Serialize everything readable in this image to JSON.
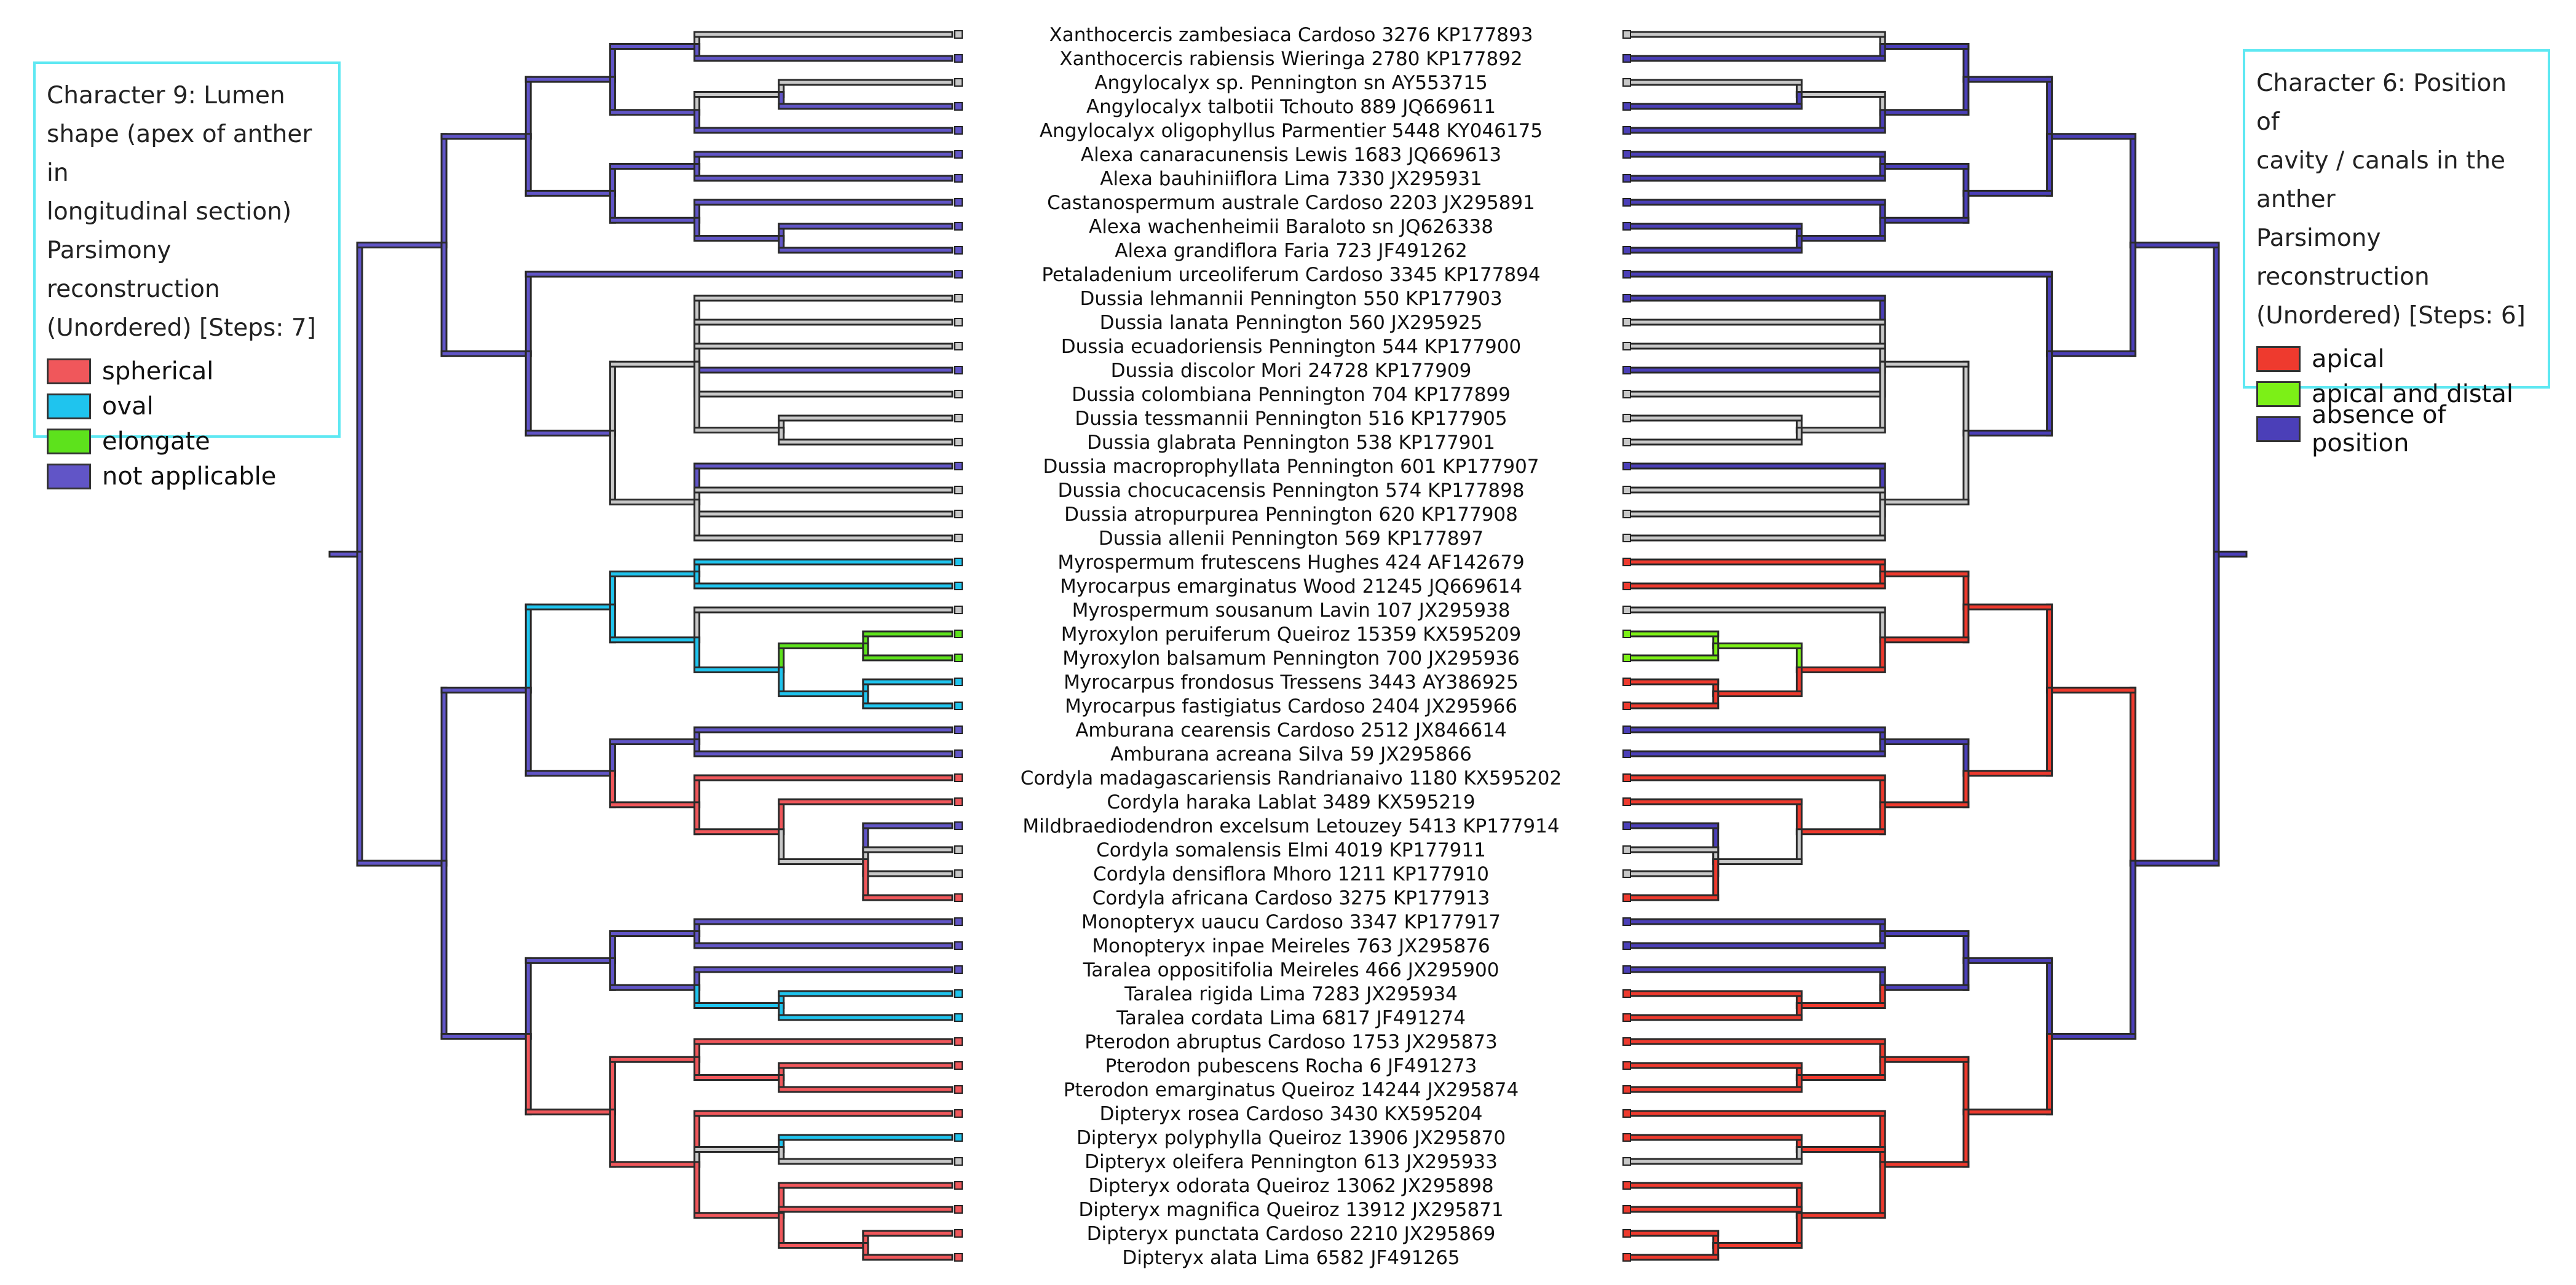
{
  "legend_left": {
    "title_lines": [
      "Character 9: Lumen",
      "shape (apex of anther in",
      "longitudinal section)",
      "Parsimony reconstruction",
      "(Unordered) [Steps: 7]"
    ],
    "items": [
      {
        "label": "spherical",
        "color": "#f0575b"
      },
      {
        "label": "oval",
        "color": "#1fc4ee"
      },
      {
        "label": "elongate",
        "color": "#5de21c"
      },
      {
        "label": "not applicable",
        "color": "#6155c7"
      }
    ]
  },
  "legend_right": {
    "title_lines": [
      "Character 6: Position of",
      "cavity / canals in the",
      "anther",
      "Parsimony reconstruction",
      "(Unordered) [Steps: 6]"
    ],
    "items": [
      {
        "label": "apical",
        "color": "#ee3a2e"
      },
      {
        "label": "apical and distal",
        "color": "#7cf017"
      },
      {
        "label": "absence of position",
        "color": "#4b3fb8"
      }
    ]
  },
  "taxa": [
    "Xanthocercis zambesiaca Cardoso 3276 KP177893",
    "Xanthocercis rabiensis Wieringa 2780 KP177892",
    "Angylocalyx sp.  Pennington sn AY553715",
    "Angylocalyx talbotii Tchouto 889 JQ669611",
    "Angylocalyx oligophyllus Parmentier 5448 KY046175",
    "Alexa canaracunensis Lewis 1683 JQ669613",
    "Alexa bauhiniiflora Lima 7330 JX295931",
    "Castanospermum australe Cardoso 2203 JX295891",
    "Alexa wachenheimii Baraloto sn JQ626338",
    "Alexa grandiflora Faria 723 JF491262",
    "Petaladenium urceoliferum Cardoso 3345 KP177894",
    "Dussia lehmannii Pennington 550 KP177903",
    "Dussia lanata Pennington 560 JX295925",
    "Dussia ecuadoriensis Pennington 544 KP177900",
    "Dussia discolor Mori 24728 KP177909",
    "Dussia colombiana Pennington 704 KP177899",
    "Dussia tessmannii Pennington 516 KP177905",
    "Dussia glabrata Pennington 538 KP177901",
    "Dussia macroprophyllata Pennington 601 KP177907",
    "Dussia chocucacensis Pennington 574 KP177898",
    "Dussia atropurpurea Pennington 620 KP177908",
    "Dussia allenii Pennington 569 KP177897",
    "Myrospermum frutescens Hughes 424 AF142679",
    "Myrocarpus emarginatus Wood 21245 JQ669614",
    "Myrospermum sousanum Lavin 107 JX295938",
    "Myroxylon peruiferum Queiroz 15359 KX595209",
    "Myroxylon balsamum Pennington 700 JX295936",
    "Myrocarpus frondosus Tressens 3443 AY386925",
    "Myrocarpus fastigiatus Cardoso 2404 JX295966",
    "Amburana cearensis Cardoso 2512 JX846614",
    "Amburana acreana Silva 59 JX295866",
    "Cordyla madagascariensis Randrianaivo 1180 KX595202",
    "Cordyla haraka Lablat 3489 KX595219",
    "Mildbraediodendron excelsum Letouzey 5413 KP177914",
    "Cordyla somalensis Elmi 4019 KP177911",
    "Cordyla densiflora Mhoro 1211 KP177910",
    "Cordyla africana Cardoso 3275 KP177913",
    "Monopteryx uaucu Cardoso 3347 KP177917",
    "Monopteryx inpae Meireles 763 JX295876",
    "Taralea oppositifolia Meireles 466 JX295900",
    "Taralea rigida Lima 7283 JX295934",
    "Taralea cordata Lima 6817 JF491274",
    "Pterodon abruptus Cardoso 1753 JX295873",
    "Pterodon pubescens Rocha 6 JF491273",
    "Pterodon emarginatus Queiroz 14244 JX295874",
    "Dipteryx rosea Cardoso 3430 KX595204",
    "Dipteryx polyphylla Queiroz 13906 JX295870",
    "Dipteryx oleifera Pennington 613 JX295933",
    "Dipteryx odorata Queiroz 13062 JX295898",
    "Dipteryx magnifica Queiroz 13912 JX295871",
    "Dipteryx punctata Cardoso 2210 JX295869",
    "Dipteryx alata Lima 6582 JF491265"
  ],
  "state_colors": {
    "spherical": "#f0575b",
    "oval": "#1fc4ee",
    "elongate": "#5de21c",
    "not_applicable": "#6155c7",
    "apical": "#ee3a2e",
    "apical_and_distal": "#7cf017",
    "absence": "#4b3fb8",
    "equivocal": "#c8c8c8",
    "missing": "#ffffff"
  },
  "tree": {
    "name": "root",
    "children": [
      {
        "name": "n1",
        "children": [
          {
            "name": "n2",
            "children": [
              {
                "name": "n3",
                "children": [
                  {
                    "name": "n4",
                    "children": [
                      {
                        "tip": 0
                      },
                      {
                        "tip": 1
                      }
                    ]
                  },
                  {
                    "name": "n5",
                    "children": [
                      {
                        "name": "n6",
                        "children": [
                          {
                            "tip": 2
                          },
                          {
                            "tip": 3
                          }
                        ]
                      },
                      {
                        "tip": 4
                      }
                    ]
                  }
                ]
              },
              {
                "name": "n7",
                "children": [
                  {
                    "name": "n8",
                    "children": [
                      {
                        "tip": 5
                      },
                      {
                        "tip": 6
                      }
                    ]
                  },
                  {
                    "name": "n9",
                    "children": [
                      {
                        "tip": 7
                      },
                      {
                        "name": "n10",
                        "children": [
                          {
                            "tip": 8
                          },
                          {
                            "tip": 9
                          }
                        ]
                      }
                    ]
                  }
                ]
              }
            ]
          },
          {
            "name": "n11",
            "children": [
              {
                "tip": 10
              },
              {
                "name": "n12",
                "children": [
                  {
                    "name": "n13",
                    "children": [
                      {
                        "tip": 11
                      },
                      {
                        "tip": 12
                      },
                      {
                        "tip": 13
                      },
                      {
                        "tip": 14
                      },
                      {
                        "tip": 15
                      },
                      {
                        "name": "n14",
                        "children": [
                          {
                            "tip": 16
                          },
                          {
                            "tip": 17
                          }
                        ]
                      }
                    ]
                  },
                  {
                    "name": "n15",
                    "children": [
                      {
                        "tip": 18
                      },
                      {
                        "tip": 19
                      },
                      {
                        "tip": 20
                      },
                      {
                        "tip": 21
                      }
                    ]
                  }
                ]
              }
            ]
          }
        ]
      },
      {
        "name": "n16",
        "children": [
          {
            "name": "n17",
            "children": [
              {
                "name": "n18",
                "children": [
                  {
                    "name": "n19",
                    "children": [
                      {
                        "tip": 22
                      },
                      {
                        "tip": 23
                      }
                    ]
                  },
                  {
                    "name": "n20",
                    "children": [
                      {
                        "tip": 24
                      },
                      {
                        "name": "n21",
                        "children": [
                          {
                            "name": "n22",
                            "children": [
                              {
                                "tip": 25
                              },
                              {
                                "tip": 26
                              }
                            ]
                          },
                          {
                            "name": "n23",
                            "children": [
                              {
                                "tip": 27
                              },
                              {
                                "tip": 28
                              }
                            ]
                          }
                        ]
                      }
                    ]
                  }
                ]
              },
              {
                "name": "n24",
                "children": [
                  {
                    "name": "n25",
                    "children": [
                      {
                        "tip": 29
                      },
                      {
                        "tip": 30
                      }
                    ]
                  },
                  {
                    "name": "n26",
                    "children": [
                      {
                        "tip": 31
                      },
                      {
                        "name": "n27",
                        "children": [
                          {
                            "tip": 32
                          },
                          {
                            "name": "n28",
                            "children": [
                              {
                                "tip": 33
                              },
                              {
                                "tip": 34
                              },
                              {
                                "tip": 35
                              },
                              {
                                "tip": 36
                              }
                            ]
                          }
                        ]
                      }
                    ]
                  }
                ]
              }
            ]
          },
          {
            "name": "n29",
            "children": [
              {
                "name": "n30",
                "children": [
                  {
                    "name": "n31",
                    "children": [
                      {
                        "tip": 37
                      },
                      {
                        "tip": 38
                      }
                    ]
                  },
                  {
                    "name": "n32",
                    "children": [
                      {
                        "tip": 39
                      },
                      {
                        "name": "n33",
                        "children": [
                          {
                            "tip": 40
                          },
                          {
                            "tip": 41
                          }
                        ]
                      }
                    ]
                  }
                ]
              },
              {
                "name": "n34",
                "children": [
                  {
                    "name": "n35",
                    "children": [
                      {
                        "tip": 42
                      },
                      {
                        "name": "n36",
                        "children": [
                          {
                            "tip": 43
                          },
                          {
                            "tip": 44
                          }
                        ]
                      }
                    ]
                  },
                  {
                    "name": "n37",
                    "children": [
                      {
                        "tip": 45
                      },
                      {
                        "name": "n38",
                        "children": [
                          {
                            "tip": 46
                          },
                          {
                            "tip": 47
                          }
                        ]
                      },
                      {
                        "name": "n39",
                        "children": [
                          {
                            "tip": 48
                          },
                          {
                            "tip": 49
                          },
                          {
                            "name": "n40",
                            "children": [
                              {
                                "tip": 50
                              },
                              {
                                "tip": 51
                              }
                            ]
                          }
                        ]
                      }
                    ]
                  }
                ]
              }
            ]
          }
        ]
      }
    ]
  },
  "left_tip_states": [
    "equivocal",
    "not_applicable",
    "equivocal",
    "not_applicable",
    "not_applicable",
    "not_applicable",
    "not_applicable",
    "not_applicable",
    "not_applicable",
    "not_applicable",
    "not_applicable",
    "equivocal",
    "equivocal",
    "equivocal",
    "not_applicable",
    "equivocal",
    "equivocal",
    "equivocal",
    "not_applicable",
    "equivocal",
    "equivocal",
    "equivocal",
    "oval",
    "oval",
    "equivocal",
    "elongate",
    "elongate",
    "oval",
    "oval",
    "not_applicable",
    "not_applicable",
    "spherical",
    "spherical",
    "not_applicable",
    "equivocal",
    "equivocal",
    "spherical",
    "not_applicable",
    "not_applicable",
    "not_applicable",
    "oval",
    "oval",
    "spherical",
    "spherical",
    "spherical",
    "spherical",
    "oval",
    "equivocal",
    "spherical",
    "spherical",
    "spherical",
    "spherical"
  ],
  "left_node_states": {
    "root": "not_applicable",
    "n1": "not_applicable",
    "n2": "not_applicable",
    "n3": "not_applicable",
    "n4": "not_applicable",
    "n5": "not_applicable",
    "n6": "equivocal",
    "n7": "not_applicable",
    "n8": "not_applicable",
    "n9": "not_applicable",
    "n10": "not_applicable",
    "n11": "not_applicable",
    "n12": "not_applicable",
    "n13": "equivocal",
    "n14": "equivocal",
    "n15": "equivocal",
    "n16": "not_applicable",
    "n17": "not_applicable",
    "n18": "oval",
    "n19": "oval",
    "n20": "oval",
    "n21": "oval",
    "n22": "elongate",
    "n23": "oval",
    "n24": "not_applicable",
    "n25": "not_applicable",
    "n26": "spherical",
    "n27": "spherical",
    "n28": "equivocal",
    "n29": "not_applicable",
    "n30": "not_applicable",
    "n31": "not_applicable",
    "n32": "not_applicable",
    "n33": "oval",
    "n34": "spherical",
    "n35": "spherical",
    "n36": "spherical",
    "n37": "spherical",
    "n38": "equivocal",
    "n39": "spherical",
    "n40": "spherical"
  },
  "right_tip_states": [
    "equivocal",
    "absence",
    "equivocal",
    "absence",
    "absence",
    "absence",
    "absence",
    "absence",
    "absence",
    "absence",
    "absence",
    "absence",
    "equivocal",
    "equivocal",
    "absence",
    "equivocal",
    "equivocal",
    "equivocal",
    "absence",
    "equivocal",
    "equivocal",
    "equivocal",
    "apical",
    "apical",
    "equivocal",
    "apical_and_distal",
    "apical_and_distal",
    "apical",
    "apical",
    "absence",
    "absence",
    "apical",
    "apical",
    "absence",
    "equivocal",
    "equivocal",
    "apical",
    "absence",
    "absence",
    "absence",
    "apical",
    "apical",
    "apical",
    "apical",
    "apical",
    "apical",
    "apical",
    "equivocal",
    "apical",
    "apical",
    "apical",
    "apical"
  ],
  "right_node_states": {
    "root": "absence",
    "n1": "absence",
    "n2": "absence",
    "n3": "absence",
    "n4": "absence",
    "n5": "absence",
    "n6": "equivocal",
    "n7": "absence",
    "n8": "absence",
    "n9": "absence",
    "n10": "absence",
    "n11": "absence",
    "n12": "absence",
    "n13": "equivocal",
    "n14": "equivocal",
    "n15": "equivocal",
    "n16": "absence",
    "n17": "apical",
    "n18": "apical",
    "n19": "apical",
    "n20": "apical",
    "n21": "apical",
    "n22": "apical_and_distal",
    "n23": "apical",
    "n24": "apical",
    "n25": "absence",
    "n26": "apical",
    "n27": "apical",
    "n28": "equivocal",
    "n29": "absence",
    "n30": "absence",
    "n31": "absence",
    "n32": "absence",
    "n33": "apical",
    "n34": "apical",
    "n35": "apical",
    "n36": "apical",
    "n37": "apical",
    "n38": "apical",
    "n39": "apical",
    "n40": "apical"
  }
}
